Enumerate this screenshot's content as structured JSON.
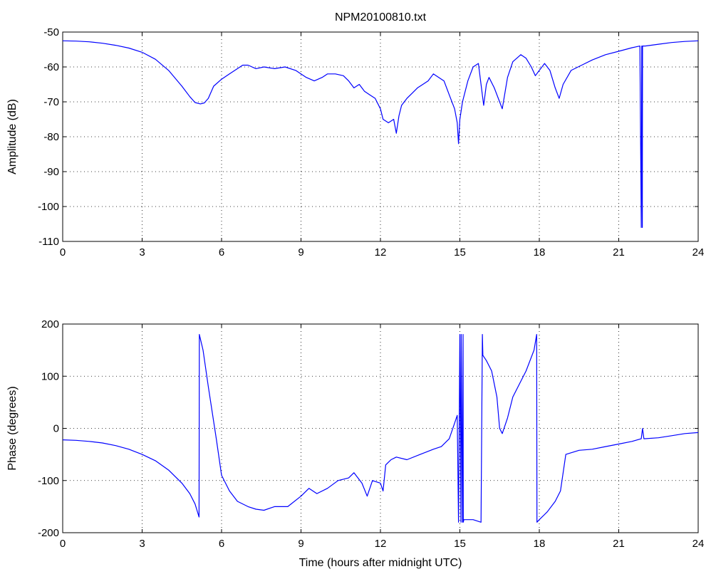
{
  "figure": {
    "title": "NPM20100810.txt",
    "line_color": "#0000ff"
  },
  "chart_data": [
    {
      "type": "line",
      "title": "NPM20100810.txt",
      "xlabel": "",
      "ylabel": "Amplitude (dB)",
      "xlim": [
        0,
        24
      ],
      "ylim": [
        -110,
        -50
      ],
      "xticks": [
        "0",
        "3",
        "6",
        "9",
        "12",
        "15",
        "18",
        "21",
        "24"
      ],
      "yticks": [
        "-50",
        "-60",
        "-70",
        "-80",
        "-90",
        "-100",
        "-110"
      ],
      "grid": true,
      "series": [
        {
          "x": [
            0,
            0.5,
            1,
            1.5,
            2,
            2.5,
            3,
            3.5,
            4,
            4.5,
            4.8,
            5.0,
            5.2,
            5.35,
            5.5,
            5.7,
            6.0,
            6.3,
            6.6,
            6.8,
            7.0,
            7.3,
            7.6,
            8.0,
            8.4,
            8.8,
            9.2,
            9.5,
            9.8,
            10.0,
            10.3,
            10.6,
            10.8,
            11.0,
            11.2,
            11.4,
            11.6,
            11.8,
            12.0,
            12.1,
            12.3,
            12.5,
            12.6,
            12.7,
            12.8,
            13.0,
            13.2,
            13.4,
            13.6,
            13.8,
            14.0,
            14.2,
            14.4,
            14.6,
            14.8,
            14.9,
            14.95,
            15.0,
            15.1,
            15.3,
            15.5,
            15.7,
            15.8,
            15.9,
            16.0,
            16.1,
            16.3,
            16.5,
            16.6,
            16.8,
            17.0,
            17.3,
            17.5,
            17.7,
            17.85,
            18.0,
            18.2,
            18.4,
            18.6,
            18.75,
            18.9,
            19.2,
            19.6,
            20.0,
            20.5,
            21.0,
            21.5,
            21.8,
            21.85,
            21.87,
            21.89,
            21.9,
            21.95,
            22.0,
            22.5,
            23.0,
            23.5,
            24.0
          ],
          "y": [
            -52.5,
            -52.6,
            -52.8,
            -53.2,
            -53.8,
            -54.6,
            -55.8,
            -57.8,
            -61,
            -65.5,
            -68.5,
            -70.2,
            -70.6,
            -70.3,
            -69,
            -65.5,
            -63.5,
            -62,
            -60.5,
            -59.5,
            -59.5,
            -60.5,
            -60,
            -60.5,
            -60,
            -61,
            -63,
            -64,
            -63,
            -62,
            -62,
            -62.5,
            -64,
            -66,
            -65,
            -67,
            -68,
            -69,
            -72,
            -75,
            -76,
            -75,
            -79,
            -74,
            -71,
            -69,
            -67.5,
            -66,
            -65,
            -64,
            -62,
            -63,
            -64,
            -68,
            -72,
            -76,
            -82,
            -75,
            -70,
            -64,
            -60,
            -59,
            -65,
            -71,
            -65,
            -63,
            -66,
            -70,
            -72,
            -63,
            -58.5,
            -56.5,
            -57.5,
            -60,
            -62.5,
            -61,
            -59,
            -61,
            -66,
            -69,
            -65,
            -61,
            -59.5,
            -58,
            -56.5,
            -55.5,
            -54.5,
            -54,
            -106,
            -54,
            -106,
            -54,
            -54,
            -54,
            -53.5,
            -53,
            -52.7,
            -52.5
          ]
        }
      ]
    },
    {
      "type": "line",
      "title": "",
      "xlabel": "Time (hours after midnight UTC)",
      "ylabel": "Phase (degrees)",
      "xlim": [
        0,
        24
      ],
      "ylim": [
        -200,
        200
      ],
      "xticks": [
        "0",
        "3",
        "6",
        "9",
        "12",
        "15",
        "18",
        "21",
        "24"
      ],
      "yticks": [
        "200",
        "100",
        "0",
        "-100",
        "-200"
      ],
      "grid": true,
      "series": [
        {
          "x": [
            0,
            0.5,
            1,
            1.5,
            2,
            2.5,
            3,
            3.5,
            4,
            4.5,
            4.8,
            5.0,
            5.15,
            5.16,
            5.3,
            5.5,
            5.8,
            6.0,
            6.3,
            6.6,
            7.0,
            7.3,
            7.6,
            8.0,
            8.5,
            9.0,
            9.3,
            9.6,
            10.0,
            10.4,
            10.8,
            11.0,
            11.3,
            11.5,
            11.7,
            12.0,
            12.1,
            12.2,
            12.3,
            12.4,
            12.6,
            13.0,
            13.5,
            14.0,
            14.3,
            14.6,
            14.8,
            14.9,
            14.95,
            15.0,
            15.04,
            15.05,
            15.1,
            15.12,
            15.13,
            15.15,
            15.2,
            15.5,
            15.8,
            15.85,
            15.87,
            16.0,
            16.2,
            16.4,
            16.5,
            16.6,
            16.8,
            17.0,
            17.5,
            17.8,
            17.9,
            17.91,
            18.0,
            18.3,
            18.6,
            18.8,
            19.0,
            19.5,
            20.0,
            20.5,
            21.0,
            21.5,
            21.85,
            21.9,
            21.95,
            22.5,
            23.0,
            23.5,
            24.0
          ],
          "y": [
            -22,
            -23,
            -25,
            -28,
            -33,
            -40,
            -50,
            -62,
            -80,
            -105,
            -125,
            -145,
            -170,
            180,
            150,
            80,
            -20,
            -90,
            -120,
            -140,
            -150,
            -155,
            -157,
            -150,
            -150,
            -130,
            -115,
            -125,
            -115,
            -100,
            -95,
            -85,
            -105,
            -130,
            -100,
            -105,
            -120,
            -70,
            -65,
            -60,
            -55,
            -60,
            -50,
            -40,
            -35,
            -20,
            10,
            25,
            -180,
            180,
            -180,
            180,
            -180,
            180,
            -180,
            -175,
            -175,
            -175,
            -180,
            180,
            140,
            130,
            110,
            60,
            0,
            -10,
            20,
            60,
            110,
            150,
            180,
            -180,
            -175,
            -160,
            -140,
            -120,
            -50,
            -42,
            -40,
            -35,
            -30,
            -25,
            -20,
            0,
            -20,
            -18,
            -14,
            -10,
            -8
          ]
        }
      ]
    }
  ]
}
